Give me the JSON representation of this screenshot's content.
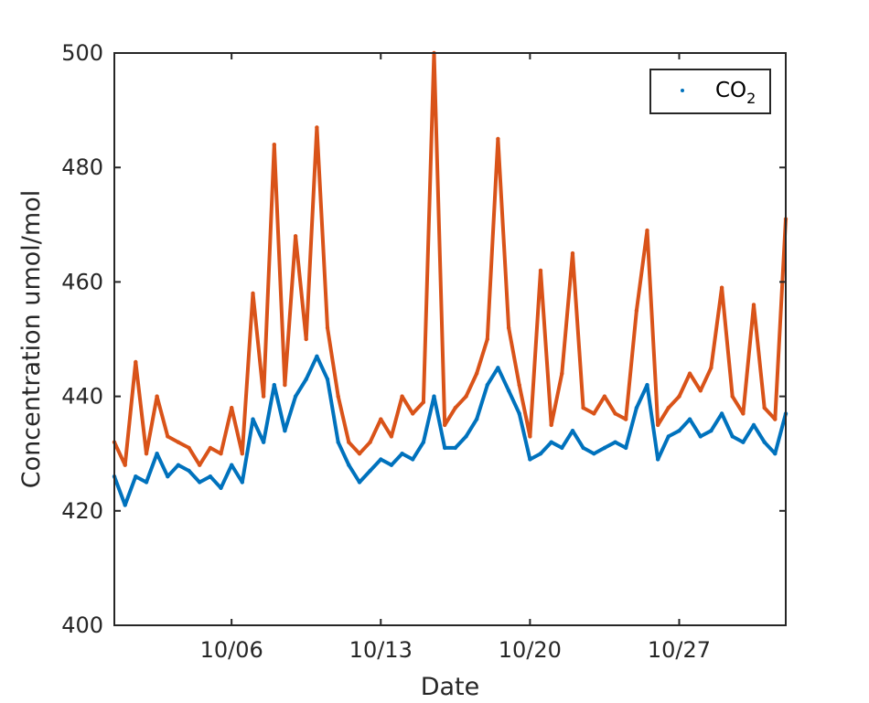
{
  "chart_data": {
    "type": "scatter",
    "title": "",
    "xlabel": "Date",
    "ylabel": "Concentration umol/mol",
    "ylim": [
      400,
      500
    ],
    "xlim": [
      "2023-09-30T12:00",
      "2023-11-01T00:00"
    ],
    "yticks": [
      "400",
      "420",
      "440",
      "460",
      "480",
      "500"
    ],
    "xticks": [
      {
        "label": "10/06",
        "date": "2023-10-06"
      },
      {
        "label": "10/13",
        "date": "2023-10-13"
      },
      {
        "label": "10/20",
        "date": "2023-10-20"
      },
      {
        "label": "10/27",
        "date": "2023-10-27"
      }
    ],
    "grid": false,
    "legend": {
      "placement": "top-right",
      "entries": [
        {
          "name": "CO",
          "subscript": "2",
          "color": "#0072BD"
        }
      ]
    },
    "series": [
      {
        "name": "CO2",
        "color": "#0072BD",
        "x": [
          "2023-09-30T12:00",
          "2023-10-01T00:00",
          "2023-10-01T12:00",
          "2023-10-02T00:00",
          "2023-10-02T12:00",
          "2023-10-03T00:00",
          "2023-10-03T12:00",
          "2023-10-04T00:00",
          "2023-10-04T12:00",
          "2023-10-05T00:00",
          "2023-10-05T12:00",
          "2023-10-06T00:00",
          "2023-10-06T12:00",
          "2023-10-07T00:00",
          "2023-10-07T12:00",
          "2023-10-08T00:00",
          "2023-10-08T12:00",
          "2023-10-09T00:00",
          "2023-10-09T12:00",
          "2023-10-10T00:00",
          "2023-10-10T12:00",
          "2023-10-11T00:00",
          "2023-10-11T12:00",
          "2023-10-12T00:00",
          "2023-10-12T12:00",
          "2023-10-13T00:00",
          "2023-10-13T12:00",
          "2023-10-14T00:00",
          "2023-10-14T12:00",
          "2023-10-15T00:00",
          "2023-10-15T12:00",
          "2023-10-16T00:00",
          "2023-10-16T12:00",
          "2023-10-17T00:00",
          "2023-10-17T12:00",
          "2023-10-18T00:00",
          "2023-10-18T12:00",
          "2023-10-19T00:00",
          "2023-10-19T12:00",
          "2023-10-20T00:00",
          "2023-10-20T12:00",
          "2023-10-21T00:00",
          "2023-10-21T12:00",
          "2023-10-22T00:00",
          "2023-10-22T12:00",
          "2023-10-23T00:00",
          "2023-10-23T12:00",
          "2023-10-24T00:00",
          "2023-10-24T12:00",
          "2023-10-25T00:00",
          "2023-10-25T12:00",
          "2023-10-26T00:00",
          "2023-10-26T12:00",
          "2023-10-27T00:00",
          "2023-10-27T12:00",
          "2023-10-28T00:00",
          "2023-10-28T12:00",
          "2023-10-29T00:00",
          "2023-10-29T12:00",
          "2023-10-30T00:00",
          "2023-10-30T12:00",
          "2023-10-31T00:00",
          "2023-10-31T12:00",
          "2023-11-01T00:00"
        ],
        "y": [
          426,
          421,
          426,
          425,
          430,
          426,
          428,
          427,
          425,
          426,
          424,
          428,
          425,
          436,
          432,
          442,
          434,
          440,
          443,
          447,
          443,
          432,
          428,
          425,
          427,
          429,
          428,
          430,
          429,
          432,
          440,
          431,
          431,
          433,
          436,
          442,
          445,
          441,
          437,
          429,
          430,
          432,
          431,
          434,
          431,
          430,
          431,
          432,
          431,
          438,
          442,
          429,
          433,
          434,
          436,
          433,
          434,
          437,
          433,
          432,
          435,
          432,
          430,
          437
        ]
      },
      {
        "name": "",
        "color": "#D95319",
        "x": [
          "2023-09-30T12:00",
          "2023-10-01T00:00",
          "2023-10-01T12:00",
          "2023-10-02T00:00",
          "2023-10-02T12:00",
          "2023-10-03T00:00",
          "2023-10-03T12:00",
          "2023-10-04T00:00",
          "2023-10-04T12:00",
          "2023-10-05T00:00",
          "2023-10-05T12:00",
          "2023-10-06T00:00",
          "2023-10-06T12:00",
          "2023-10-07T00:00",
          "2023-10-07T12:00",
          "2023-10-08T00:00",
          "2023-10-08T12:00",
          "2023-10-09T00:00",
          "2023-10-09T12:00",
          "2023-10-10T00:00",
          "2023-10-10T12:00",
          "2023-10-11T00:00",
          "2023-10-11T12:00",
          "2023-10-12T00:00",
          "2023-10-12T12:00",
          "2023-10-13T00:00",
          "2023-10-13T12:00",
          "2023-10-14T00:00",
          "2023-10-14T12:00",
          "2023-10-15T00:00",
          "2023-10-15T12:00",
          "2023-10-16T00:00",
          "2023-10-16T12:00",
          "2023-10-17T00:00",
          "2023-10-17T12:00",
          "2023-10-18T00:00",
          "2023-10-18T12:00",
          "2023-10-19T00:00",
          "2023-10-19T12:00",
          "2023-10-20T00:00",
          "2023-10-20T12:00",
          "2023-10-21T00:00",
          "2023-10-21T12:00",
          "2023-10-22T00:00",
          "2023-10-22T12:00",
          "2023-10-23T00:00",
          "2023-10-23T12:00",
          "2023-10-24T00:00",
          "2023-10-24T12:00",
          "2023-10-25T00:00",
          "2023-10-25T12:00",
          "2023-10-26T00:00",
          "2023-10-26T12:00",
          "2023-10-27T00:00",
          "2023-10-27T12:00",
          "2023-10-28T00:00",
          "2023-10-28T12:00",
          "2023-10-29T00:00",
          "2023-10-29T12:00",
          "2023-10-30T00:00",
          "2023-10-30T12:00",
          "2023-10-31T00:00",
          "2023-10-31T12:00",
          "2023-11-01T00:00"
        ],
        "y": [
          432,
          428,
          446,
          430,
          440,
          433,
          432,
          431,
          428,
          431,
          430,
          438,
          430,
          458,
          440,
          484,
          442,
          468,
          450,
          487,
          452,
          440,
          432,
          430,
          432,
          436,
          433,
          440,
          437,
          439,
          500,
          435,
          438,
          440,
          444,
          450,
          485,
          452,
          442,
          433,
          462,
          435,
          444,
          465,
          438,
          437,
          440,
          437,
          436,
          455,
          469,
          435,
          438,
          440,
          444,
          441,
          445,
          459,
          440,
          437,
          456,
          438,
          436,
          471
        ]
      }
    ]
  }
}
